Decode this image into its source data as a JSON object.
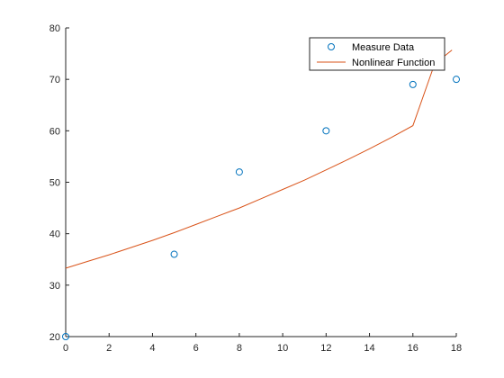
{
  "chart_data": {
    "type": "scatter",
    "title": "",
    "xlabel": "",
    "ylabel": "",
    "xlim": [
      0,
      18
    ],
    "ylim": [
      20,
      80
    ],
    "x_ticks": [
      0,
      2,
      4,
      6,
      8,
      10,
      12,
      14,
      16,
      18
    ],
    "y_ticks": [
      20,
      30,
      40,
      50,
      60,
      70,
      80
    ],
    "grid": false,
    "box": "open-top-right",
    "legend_location": "top-right",
    "series": [
      {
        "name": "Measure Data",
        "style": "markers",
        "marker": "open-circle",
        "color": "#0072BD",
        "x": [
          0,
          5,
          8,
          12,
          16,
          18
        ],
        "y": [
          20,
          36,
          52,
          60,
          69,
          70
        ]
      },
      {
        "name": "Nonlinear Function",
        "style": "line",
        "color": "#D95319",
        "x": [
          0,
          1,
          2,
          3,
          4,
          5,
          6,
          7,
          8,
          9,
          10,
          11,
          12,
          13,
          14,
          15,
          16,
          17,
          17.8
        ],
        "y": [
          33.3,
          34.6,
          35.9,
          37.3,
          38.7,
          40.2,
          41.8,
          43.4,
          45.0,
          46.8,
          48.6,
          50.4,
          52.4,
          54.4,
          56.5,
          58.7,
          61.0,
          73.0,
          75.7
        ]
      }
    ]
  }
}
